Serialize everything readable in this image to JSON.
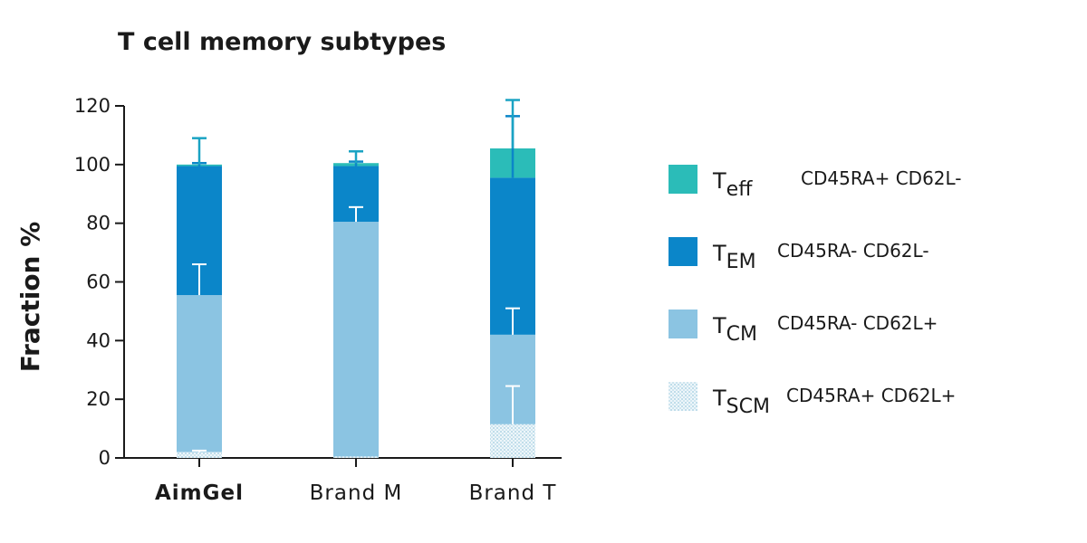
{
  "chart_data": {
    "type": "bar",
    "stacked": true,
    "title": "T cell memory subtypes",
    "ylabel": "Fraction %",
    "xlabel": "",
    "ylim": [
      0,
      120
    ],
    "yticks": [
      "0",
      "20",
      "40",
      "60",
      "80",
      "100",
      "120"
    ],
    "categories": [
      "AimGel",
      "Brand M",
      "Brand T"
    ],
    "bold_categories": [
      "AimGel"
    ],
    "grid": false,
    "legend_position": "right",
    "series": [
      {
        "key": "tscm",
        "legend_main": "T",
        "legend_sub": "SCM",
        "legend_desc": "CD45RA+ CD62L+",
        "color": "#e2eff6",
        "dotted": true,
        "values": [
          2,
          0.5,
          11.5
        ],
        "error": [
          0.5,
          0,
          13
        ]
      },
      {
        "key": "tcm",
        "legend_main": "T",
        "legend_sub": "CM",
        "legend_desc": "CD45RA- CD62L+",
        "color": "#8bc4e2",
        "dotted": false,
        "values": [
          53.5,
          80,
          30.5
        ],
        "error": [
          10.5,
          5,
          9
        ]
      },
      {
        "key": "tem",
        "legend_main": "T",
        "legend_sub": "EM",
        "legend_desc": "CD45RA- CD62L-",
        "color": "#0b86c9",
        "dotted": false,
        "values": [
          44,
          19,
          53.5
        ],
        "error": [
          1,
          1.5,
          21
        ]
      },
      {
        "key": "teff",
        "legend_main": "T",
        "legend_sub": "eff",
        "legend_desc": "CD45RA+ CD62L-",
        "color": "#2bbcb8",
        "dotted": false,
        "values": [
          0.5,
          1,
          10
        ],
        "error": [
          9,
          4,
          16.5
        ]
      }
    ]
  }
}
